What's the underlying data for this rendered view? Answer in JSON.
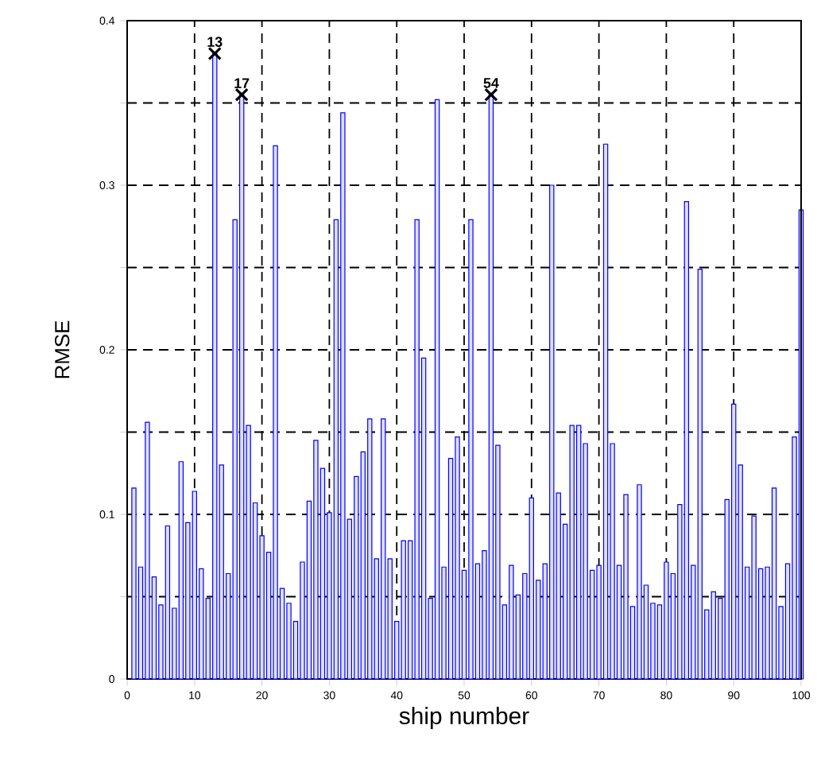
{
  "chart_data": {
    "type": "bar",
    "xlabel": "ship number",
    "ylabel": "RMSE",
    "xlim": [
      0,
      100
    ],
    "xticks": [
      0,
      10,
      20,
      30,
      40,
      50,
      60,
      70,
      80,
      90,
      100
    ],
    "ylim": [
      0,
      0.4
    ],
    "yticks": [
      0,
      {
        "value": 0.05,
        "label": null
      },
      0.1,
      {
        "value": 0.15,
        "label": null
      },
      0.2,
      {
        "value": 0.25,
        "label": null
      },
      0.3,
      {
        "value": 0.35,
        "label": null
      },
      0.4
    ],
    "grid": true,
    "series": [
      {
        "color": "#0000ff",
        "x": [
          1,
          2,
          3,
          4,
          5,
          6,
          7,
          8,
          9,
          10,
          11,
          12,
          13,
          14,
          15,
          16,
          17,
          18,
          19,
          20,
          21,
          22,
          23,
          24,
          25,
          26,
          27,
          28,
          29,
          30,
          31,
          32,
          33,
          34,
          35,
          36,
          37,
          38,
          39,
          40,
          41,
          42,
          43,
          44,
          45,
          46,
          47,
          48,
          49,
          50,
          51,
          52,
          53,
          54,
          55,
          56,
          57,
          58,
          59,
          60,
          61,
          62,
          63,
          64,
          65,
          66,
          67,
          68,
          69,
          70,
          71,
          72,
          73,
          74,
          75,
          76,
          77,
          78,
          79,
          80,
          81,
          82,
          83,
          84,
          85,
          86,
          87,
          88,
          89,
          90,
          91,
          92,
          93,
          94,
          95,
          96,
          97,
          98,
          99,
          100
        ],
        "values": [
          0.116,
          0.068,
          0.156,
          0.062,
          0.045,
          0.093,
          0.043,
          0.132,
          0.095,
          0.114,
          0.067,
          0.049,
          0.38,
          0.13,
          0.064,
          0.279,
          0.355,
          0.154,
          0.107,
          0.087,
          0.077,
          0.324,
          0.055,
          0.046,
          0.035,
          0.071,
          0.108,
          0.145,
          0.128,
          0.101,
          0.279,
          0.344,
          0.097,
          0.123,
          0.138,
          0.158,
          0.073,
          0.158,
          0.073,
          0.035,
          0.084,
          0.084,
          0.279,
          0.195,
          0.049,
          0.352,
          0.068,
          0.134,
          0.147,
          0.066,
          0.279,
          0.07,
          0.078,
          0.355,
          0.142,
          0.045,
          0.069,
          0.051,
          0.064,
          0.11,
          0.06,
          0.07,
          0.3,
          0.113,
          0.094,
          0.154,
          0.154,
          0.143,
          0.066,
          0.069,
          0.325,
          0.143,
          0.069,
          0.112,
          0.044,
          0.118,
          0.057,
          0.046,
          0.045,
          0.071,
          0.064,
          0.106,
          0.29,
          0.069,
          0.249,
          0.042,
          0.053,
          0.049,
          0.109,
          0.167,
          0.13,
          0.068,
          0.099,
          0.067,
          0.068,
          0.116,
          0.044,
          0.07,
          0.147,
          0.285
        ]
      },
      {
        "type": "scatter",
        "color": "#000000",
        "marker": "cross",
        "x": [
          13,
          17,
          54
        ],
        "values": [
          0.38,
          0.355,
          0.355
        ]
      }
    ],
    "annotations": [
      {
        "text": "13",
        "x": 13,
        "y": 0.38
      },
      {
        "text": "17",
        "x": 17,
        "y": 0.355
      },
      {
        "text": "54",
        "x": 54,
        "y": 0.355
      }
    ]
  }
}
